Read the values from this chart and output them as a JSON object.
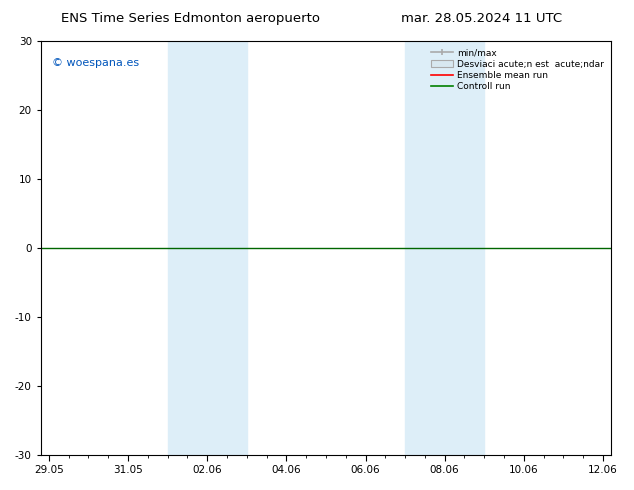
{
  "title_left": "ENS Time Series Edmonton aeropuerto",
  "title_right": "mar. 28.05.2024 11 UTC",
  "ylim": [
    -30,
    30
  ],
  "yticks": [
    -30,
    -20,
    -10,
    0,
    10,
    20,
    30
  ],
  "xtick_labels": [
    "29.05",
    "31.05",
    "02.06",
    "04.06",
    "06.06",
    "08.06",
    "10.06",
    "12.06"
  ],
  "xtick_positions": [
    0,
    2,
    4,
    6,
    8,
    10,
    12,
    14
  ],
  "xlim": [
    -0.2,
    14.2
  ],
  "watermark": "© woespana.es",
  "shaded_color": "#ddeef8",
  "shaded_regions": [
    {
      "xstart": 3.0,
      "xend": 5.0
    },
    {
      "xstart": 9.0,
      "xend": 11.0
    }
  ],
  "legend_labels": [
    "min/max",
    "Desviaci acute;n est  acute;ndar",
    "Ensemble mean run",
    "Controll run"
  ],
  "legend_colors": [
    "#aaaaaa",
    "#cccccc",
    "#ff0000",
    "#008000"
  ],
  "background_color": "#ffffff",
  "zero_line_color": "#006600",
  "title_fontsize": 9.5,
  "tick_fontsize": 7.5,
  "watermark_color": "#0055bb",
  "watermark_fontsize": 8
}
